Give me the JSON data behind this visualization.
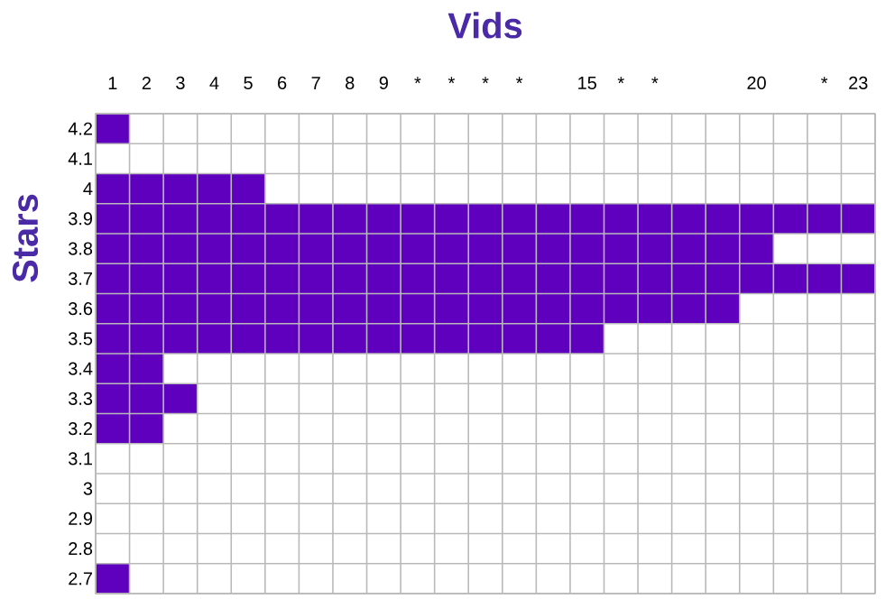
{
  "chart_data": {
    "type": "bar",
    "orientation": "horizontal",
    "xlabel": "Vids",
    "ylabel": "Stars",
    "categories": [
      "4.2",
      "4.1",
      "4",
      "3.9",
      "3.8",
      "3.7",
      "3.6",
      "3.5",
      "3.4",
      "3.3",
      "3.2",
      "3.1",
      "3",
      "2.9",
      "2.8",
      "2.7"
    ],
    "values": [
      1,
      0,
      5,
      23,
      20,
      23,
      19,
      15,
      2,
      3,
      2,
      0,
      0,
      0,
      0,
      1
    ],
    "color": "#5f00be",
    "xlim": [
      0,
      23
    ],
    "xticks": [
      {
        "value": 0.5,
        "label": "1"
      },
      {
        "value": 1.5,
        "label": "2"
      },
      {
        "value": 2.5,
        "label": "3"
      },
      {
        "value": 3.5,
        "label": "4"
      },
      {
        "value": 4.5,
        "label": "5"
      },
      {
        "value": 5.5,
        "label": "6"
      },
      {
        "value": 6.5,
        "label": "7"
      },
      {
        "value": 7.5,
        "label": "8"
      },
      {
        "value": 8.5,
        "label": "9"
      },
      {
        "value": 9.5,
        "label": "*"
      },
      {
        "value": 10.5,
        "label": "*"
      },
      {
        "value": 11.5,
        "label": "*"
      },
      {
        "value": 12.5,
        "label": "*"
      },
      {
        "value": 14.5,
        "label": "15"
      },
      {
        "value": 15.5,
        "label": "*"
      },
      {
        "value": 16.5,
        "label": "*"
      },
      {
        "value": 19.5,
        "label": "20"
      },
      {
        "value": 21.5,
        "label": "*"
      },
      {
        "value": 22.5,
        "label": "23"
      }
    ],
    "grid": true
  }
}
